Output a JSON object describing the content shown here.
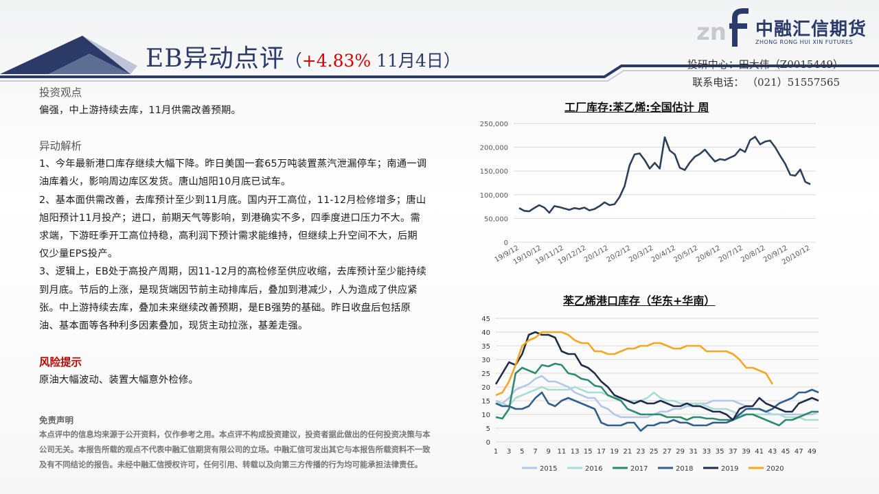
{
  "header": {
    "title_main": "EB异动点评",
    "title_paren_open": "（",
    "title_change": "+4.83%",
    "title_date": " 11月4日）",
    "logo_cn": "中融汇信期货",
    "logo_en": "ZHONG RONG HUI XIN FUTURES",
    "contact_line1": "投研中心：田大伟（Z0015449）",
    "contact_line2": "联系电话：  （021）51557565"
  },
  "content": {
    "view_heading": "投资观点",
    "view_text": "偏强，中上游持续去库，11月供需改善预期。",
    "analysis_heading": "异动解析",
    "analysis_1": "1、今年最新港口库存继续大幅下降。昨日美国一套65万吨装置蒸汽泄漏停车；南通一调油库着火，影响周边库区发货。唐山旭阳10月底已试车。",
    "analysis_2": "2、基本面供需改善，去库预计至少到11月底。国内开工高位，11-12月检修增多；唐山旭阳预计11月投产；进口，前期天气等影响，到港确实不多，四季度进口压力不大。需求端，下游旺季开工高位持稳，高利润下预计需求能维持，但继续上升空间不大，后期仅少量EPS投产。",
    "analysis_3": "3、逻辑上，EB处于高投产周期，因11-12月的高检修至供应收缩，去库预计至少能持续到月底。节后的上涨，是现货端因节前主动排库后，叠加到港减少，人为造成了供应紧张。中上游持续去库，叠加未来继续改善预期，是EB强势的基础。昨日收盘后包括原油、基本面等各种利多因素叠加，现货主动拉涨，基差走强。",
    "risk_heading": "风险提示",
    "risk_text": "原油大幅波动、装置大幅意外检修。",
    "disclaimer_heading": "免责声明",
    "disclaimer_text": "本点评中的信息均来源于公开资料，仅作参考之用。本点评不构成投资建议，投资者据此做出的任何投资决策与本公司无关。本报告所载的观点不代表中融汇信期货有限公司的立场。中融汇信可发出其它与本报告所载资料不一致及有不同结论的报告。未经中融汇信授权许可，任何引用、转载以及向第三方传播的行为均可能承担法律责任。"
  },
  "colors": {
    "title": "#2b3a67",
    "accent_red": "#d40000",
    "line_chart1": "#2e3f58"
  },
  "chart_data": [
    {
      "type": "line",
      "title": "工厂库存:苯乙烯:全国估计 周",
      "ylim": [
        0,
        250000
      ],
      "yticks": [
        "0",
        "50,000",
        "100,000",
        "150,000",
        "200,000",
        "250,000"
      ],
      "yticks_values": [
        0,
        50000,
        100000,
        150000,
        200000,
        250000
      ],
      "xticks": [
        "19/9/12",
        "19/10/12",
        "19/11/12",
        "19/12/12",
        "20/1/12",
        "20/2/12",
        "20/3/12",
        "20/4/12",
        "20/5/12",
        "20/6/12",
        "20/7/12",
        "20/8/12",
        "20/9/12",
        "20/10/12"
      ],
      "grid": true,
      "series": [
        {
          "values": [
            72000,
            66000,
            65000,
            72000,
            78000,
            73000,
            62000,
            76000,
            74000,
            71000,
            68000,
            72000,
            70000,
            73000,
            67000,
            70000,
            76000,
            84000,
            78000,
            80000,
            95000,
            118000,
            162000,
            185000,
            187000,
            173000,
            155000,
            167000,
            155000,
            221000,
            193000,
            185000,
            157000,
            152000,
            168000,
            180000,
            186000,
            195000,
            182000,
            170000,
            175000,
            173000,
            178000,
            183000,
            196000,
            190000,
            215000,
            222000,
            206000,
            212000,
            214000,
            200000,
            182000,
            165000,
            142000,
            140000,
            153000,
            127000,
            122000
          ]
        }
      ]
    },
    {
      "type": "line",
      "title": "苯乙烯港口库存（华东+华南）",
      "ylim": [
        0,
        45
      ],
      "yticks": [
        "0",
        "5",
        "10",
        "15",
        "20",
        "25",
        "30",
        "35",
        "40",
        "45"
      ],
      "yticks_values": [
        0,
        5,
        10,
        15,
        20,
        25,
        30,
        35,
        40,
        45
      ],
      "xticks": [
        "1",
        "3",
        "5",
        "7",
        "9",
        "11",
        "13",
        "15",
        "17",
        "19",
        "21",
        "23",
        "25",
        "27",
        "29",
        "31",
        "33",
        "35",
        "37",
        "39",
        "41",
        "43",
        "45",
        "47",
        "49"
      ],
      "xticks_values": [
        1,
        3,
        5,
        7,
        9,
        11,
        13,
        15,
        17,
        19,
        21,
        23,
        25,
        27,
        29,
        31,
        33,
        35,
        37,
        39,
        41,
        43,
        45,
        47,
        49
      ],
      "grid": true,
      "legend_position": "bottom",
      "series": [
        {
          "name": "2015",
          "color": "#b4c7e7",
          "x": [
            1,
            2,
            3,
            4,
            5,
            6,
            7,
            8,
            9,
            10,
            11,
            12,
            13,
            14,
            15,
            16,
            17,
            18,
            19,
            20,
            21,
            22,
            23,
            24,
            25,
            26,
            27,
            28,
            29,
            30,
            31,
            32,
            33,
            34,
            35,
            36,
            37,
            38,
            39,
            40,
            41,
            42,
            43,
            44,
            45,
            46,
            47,
            48,
            49,
            50
          ],
          "values": [
            15,
            14,
            16,
            19,
            20,
            21,
            23,
            24,
            22,
            22,
            21,
            20,
            18,
            17,
            16,
            16,
            13,
            12,
            10,
            9,
            9,
            9,
            9,
            9,
            10,
            11,
            11,
            12,
            12,
            13,
            13,
            14,
            14,
            15,
            15,
            15,
            15,
            14,
            13,
            12,
            12,
            11,
            10,
            10,
            10,
            10,
            10,
            10,
            10,
            11
          ]
        },
        {
          "name": "2016",
          "color": "#a9dcd5",
          "x": [
            1,
            2,
            3,
            4,
            5,
            6,
            7,
            8,
            9,
            10,
            11,
            12,
            13,
            14,
            15,
            16,
            17,
            18,
            19,
            20,
            21,
            22,
            23,
            24,
            25,
            26,
            27,
            28,
            29,
            30,
            31,
            32,
            33,
            34,
            35,
            36,
            37,
            38,
            39,
            40,
            41,
            42,
            43,
            44,
            45,
            46,
            47,
            48,
            49,
            50
          ],
          "values": [
            14,
            14,
            13,
            16,
            17,
            18,
            19,
            20,
            19,
            19,
            19,
            19,
            20,
            19,
            18,
            18,
            18,
            17,
            16,
            16,
            15,
            15,
            15,
            16,
            18,
            16,
            15,
            15,
            14,
            14,
            14,
            14,
            13,
            12,
            12,
            12,
            11,
            10,
            10,
            10,
            10,
            10,
            10,
            10,
            9,
            9,
            9,
            8,
            8,
            8
          ]
        },
        {
          "name": "2017",
          "color": "#2e8a6e",
          "x": [
            1,
            2,
            3,
            4,
            5,
            6,
            7,
            8,
            9,
            10,
            11,
            12,
            13,
            14,
            15,
            16,
            17,
            18,
            19,
            20,
            21,
            22,
            23,
            24,
            25,
            26,
            27,
            28,
            29,
            30,
            31,
            32,
            33,
            34,
            35,
            36,
            37,
            38,
            39,
            40,
            41,
            42,
            43,
            44,
            45,
            46,
            47,
            48,
            49,
            50
          ],
          "values": [
            9,
            8.5,
            12,
            25,
            27,
            26,
            25,
            28,
            27.5,
            28.5,
            28,
            25,
            24.5,
            23,
            22.5,
            20.5,
            20,
            17,
            16,
            15,
            12,
            11,
            10,
            10,
            10,
            10,
            9,
            9,
            9,
            8,
            9,
            9,
            8.5,
            8.5,
            8,
            8,
            8,
            9,
            10,
            10,
            9,
            8,
            7,
            6,
            8,
            8,
            9,
            10,
            11,
            11
          ]
        },
        {
          "name": "2018",
          "color": "#2f5f8a",
          "x": [
            1,
            2,
            3,
            4,
            5,
            6,
            7,
            8,
            9,
            10,
            11,
            12,
            13,
            14,
            15,
            16,
            17,
            18,
            19,
            20,
            21,
            22,
            23,
            24,
            25,
            26,
            27,
            28,
            29,
            30,
            31,
            32,
            33,
            34,
            35,
            36,
            37,
            38,
            39,
            40,
            41,
            42,
            43,
            44,
            45,
            46,
            47,
            48,
            49,
            50
          ],
          "values": [
            14,
            13,
            13,
            12,
            12,
            13,
            16,
            18,
            14,
            13,
            15,
            16,
            15,
            14,
            13,
            12,
            7,
            6,
            6,
            6,
            7,
            7,
            4,
            6,
            6,
            7,
            7,
            8,
            7,
            7,
            6,
            6,
            6,
            7,
            7,
            7,
            8,
            10,
            12,
            12,
            12,
            11,
            12,
            14,
            15,
            16,
            18,
            18,
            19,
            18
          ]
        },
        {
          "name": "2019",
          "color": "#1f2c47",
          "x": [
            1,
            2,
            3,
            4,
            5,
            6,
            7,
            8,
            9,
            10,
            11,
            12,
            13,
            14,
            15,
            16,
            17,
            18,
            19,
            20,
            21,
            22,
            23,
            24,
            25,
            26,
            27,
            28,
            29,
            30,
            31,
            32,
            33,
            34,
            35,
            36,
            37,
            38,
            39,
            40,
            41,
            42,
            43,
            44,
            45,
            46,
            47,
            48,
            49,
            50
          ],
          "values": [
            21,
            25,
            29,
            28,
            32,
            39,
            40,
            39,
            39,
            38,
            33,
            32,
            32,
            28,
            27,
            25,
            22,
            20,
            17,
            16,
            15,
            14,
            15,
            14,
            14,
            15,
            14,
            13,
            13,
            14,
            13,
            13,
            12,
            11,
            11,
            10,
            8,
            12,
            13,
            13,
            16,
            14,
            13,
            12,
            11,
            11,
            14,
            15,
            16,
            15
          ]
        },
        {
          "name": "2020",
          "color": "#f5a623",
          "x": [
            1,
            2,
            3,
            4,
            5,
            6,
            7,
            8,
            9,
            10,
            11,
            12,
            13,
            14,
            15,
            16,
            17,
            18,
            19,
            20,
            21,
            22,
            23,
            24,
            25,
            26,
            27,
            28,
            29,
            30,
            31,
            32,
            33,
            34,
            35,
            36,
            37,
            38,
            39,
            40,
            41,
            42,
            43
          ],
          "values": [
            17,
            18,
            22,
            28,
            35,
            37,
            38,
            40,
            40,
            40,
            40,
            39,
            37,
            36,
            36,
            33,
            33,
            32,
            32,
            33,
            34,
            34,
            35,
            35,
            36,
            36,
            35,
            34,
            34,
            35,
            35,
            35,
            33,
            33,
            33,
            33,
            32,
            30,
            27,
            27,
            26,
            25,
            21
          ]
        }
      ]
    }
  ]
}
